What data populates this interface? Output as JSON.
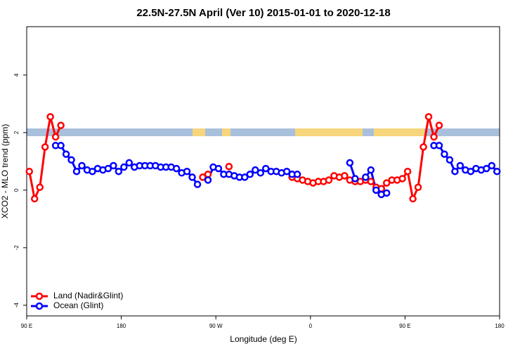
{
  "chart_data": {
    "type": "line",
    "title": "22.5N-27.5N April (Ver 10)   2015-01-01 to 2020-12-18",
    "x_label": "Longitude (deg E)",
    "y_label": "XCO2 - MLO trend (ppm)",
    "xlim": [
      90,
      540
    ],
    "ylim": [
      -4.37,
      5.68
    ],
    "xticks": [
      {
        "value": 90,
        "label": "90 E"
      },
      180,
      {
        "value": 270,
        "label": "90 W"
      },
      {
        "value": 360,
        "label": "0"
      },
      {
        "value": 450,
        "label": "90 E"
      },
      {
        "value": 540,
        "label": "180"
      }
    ],
    "yticks": [
      -4,
      -2,
      0,
      2,
      4
    ],
    "legend": "bottom-left",
    "x": [
      92.5,
      97.5,
      102.5,
      107.5,
      112.5,
      117.5,
      122.5,
      127.5,
      132.5,
      137.5,
      142.5,
      147.5,
      152.5,
      157.5,
      162.5,
      167.5,
      172.5,
      177.5,
      182.5,
      187.5,
      192.5,
      197.5,
      202.5,
      207.5,
      212.5,
      217.5,
      222.5,
      227.5,
      232.5,
      237.5,
      242.5,
      247.5,
      252.5,
      257.5,
      262.5,
      267.5,
      272.5,
      277.5,
      282.5,
      287.5,
      292.5,
      297.5,
      302.5,
      307.5,
      312.5,
      317.5,
      322.5,
      327.5,
      332.5,
      337.5,
      342.5,
      347.5,
      352.5,
      357.5,
      362.5,
      367.5,
      372.5,
      377.5,
      382.5,
      387.5,
      392.5,
      397.5,
      402.5,
      407.5,
      412.5,
      417.5,
      422.5,
      427.5,
      432.5,
      437.5,
      442.5,
      447.5,
      452.5,
      457.5,
      462.5,
      467.5,
      472.5,
      477.5,
      482.5,
      487.5,
      492.5,
      497.5,
      502.5,
      507.5,
      512.5,
      517.5,
      522.5,
      527.5,
      532.5,
      537.5
    ],
    "series": [
      {
        "name": "Land (Nadir&Glint)",
        "color": "#ff0000",
        "values": [
          0.65,
          -0.3,
          0.1,
          1.5,
          2.55,
          1.85,
          2.25,
          null,
          null,
          null,
          null,
          null,
          null,
          null,
          null,
          null,
          null,
          null,
          null,
          null,
          null,
          null,
          null,
          null,
          null,
          null,
          null,
          null,
          null,
          null,
          null,
          null,
          null,
          0.45,
          0.55,
          null,
          null,
          null,
          0.82,
          null,
          null,
          null,
          null,
          null,
          null,
          null,
          null,
          null,
          null,
          null,
          0.45,
          0.4,
          0.35,
          0.3,
          0.25,
          0.3,
          0.3,
          0.35,
          0.5,
          0.45,
          0.5,
          0.35,
          0.3,
          0.3,
          0.35,
          0.3,
          0.1,
          0.05,
          0.25,
          0.35,
          0.35,
          0.4,
          0.65,
          -0.3,
          0.1,
          1.5,
          2.55,
          1.85,
          2.25,
          null,
          null,
          null,
          null,
          null,
          null,
          null,
          null,
          null,
          null,
          null
        ]
      },
      {
        "name": "Ocean (Glint)",
        "color": "#0000ff",
        "values": [
          null,
          null,
          null,
          null,
          null,
          1.55,
          1.55,
          1.25,
          1.05,
          0.65,
          0.85,
          0.7,
          0.65,
          0.75,
          0.7,
          0.75,
          0.85,
          0.65,
          0.8,
          0.95,
          0.8,
          0.85,
          0.85,
          0.85,
          0.85,
          0.8,
          0.8,
          0.8,
          0.75,
          0.6,
          0.65,
          0.45,
          0.2,
          null,
          0.35,
          0.8,
          0.75,
          0.55,
          0.55,
          0.5,
          0.45,
          0.45,
          0.55,
          0.7,
          0.6,
          0.75,
          0.65,
          0.65,
          0.6,
          0.65,
          0.55,
          0.55,
          null,
          null,
          null,
          null,
          null,
          null,
          null,
          null,
          null,
          0.95,
          0.4,
          null,
          0.45,
          0.7,
          0.0,
          -0.15,
          -0.1,
          null,
          null,
          null,
          null,
          null,
          null,
          null,
          null,
          1.55,
          1.55,
          1.25,
          1.05,
          0.65,
          0.85,
          0.7,
          0.65,
          0.75,
          0.7,
          0.75,
          0.85,
          0.65
        ]
      }
    ]
  }
}
